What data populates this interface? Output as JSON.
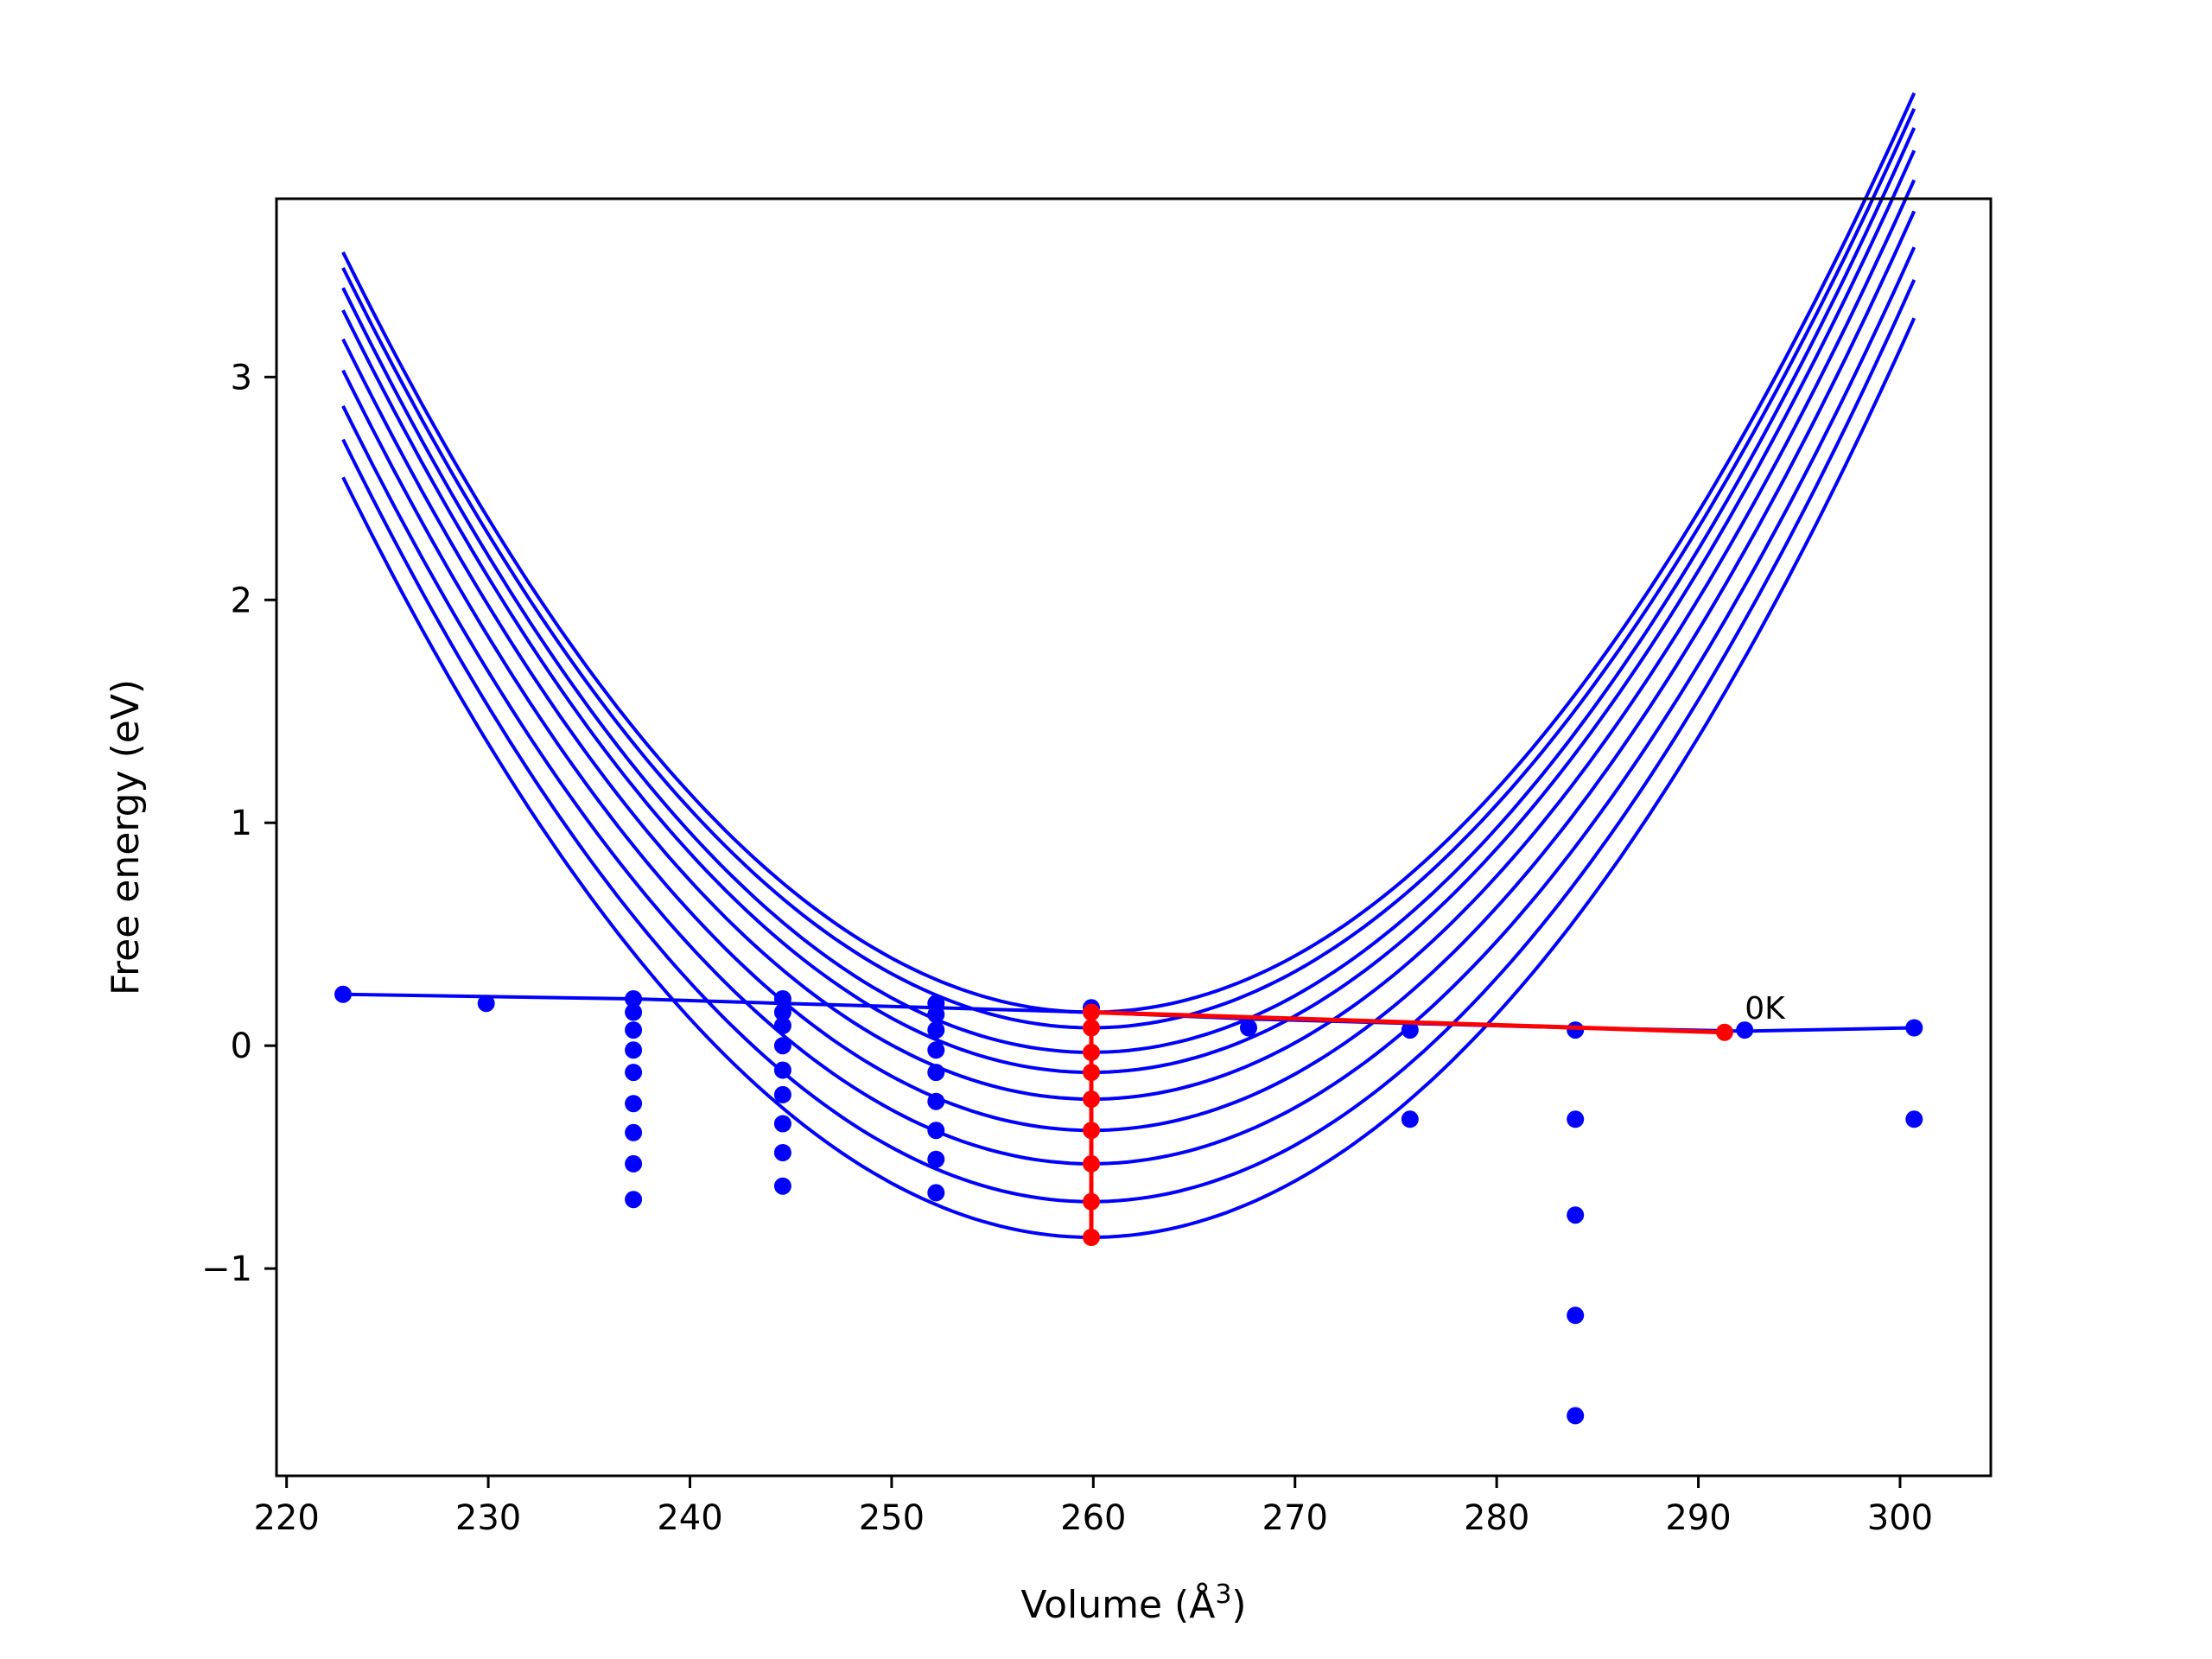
{
  "chart_data": {
    "type": "scatter",
    "xlabel": "Volume (Å",
    "xlabel_sup": "3",
    "xlabel_close": ")",
    "ylabel": "Free energy (eV)",
    "xlim": [
      219.5,
      304.5
    ],
    "ylim": [
      -1.93,
      3.8
    ],
    "xticks": [
      {
        "value": 220,
        "label": "220"
      },
      {
        "value": 230,
        "label": "230"
      },
      {
        "value": 240,
        "label": "240"
      },
      {
        "value": 250,
        "label": "250"
      },
      {
        "value": 260,
        "label": "260"
      },
      {
        "value": 270,
        "label": "270"
      },
      {
        "value": 280,
        "label": "280"
      },
      {
        "value": 290,
        "label": "290"
      },
      {
        "value": 300,
        "label": "300"
      }
    ],
    "yticks": [
      {
        "value": -1,
        "label": "−1"
      },
      {
        "value": 0,
        "label": "0"
      },
      {
        "value": 1,
        "label": "1"
      },
      {
        "value": 2,
        "label": "2"
      },
      {
        "value": 3,
        "label": "3"
      }
    ],
    "grid": false,
    "colors": {
      "curves": "#0000ff",
      "points": "#0000ff",
      "path": "#ff0000",
      "axes": "#000000"
    },
    "parabola_fits": {
      "x_range": [
        222.8,
        300.7
      ],
      "series": [
        {
          "min_x": 259.9,
          "min_y": 0.15,
          "y_at_left": 3.56
        },
        {
          "min_x": 259.9,
          "min_y": 0.08,
          "y_at_left": 3.49
        },
        {
          "min_x": 259.9,
          "min_y": -0.03,
          "y_at_left": 3.4
        },
        {
          "min_x": 259.9,
          "min_y": -0.12,
          "y_at_left": 3.3
        },
        {
          "min_x": 259.9,
          "min_y": -0.24,
          "y_at_left": 3.17
        },
        {
          "min_x": 259.9,
          "min_y": -0.38,
          "y_at_left": 3.03
        },
        {
          "min_x": 259.9,
          "min_y": -0.53,
          "y_at_left": 2.87
        },
        {
          "min_x": 259.9,
          "min_y": -0.7,
          "y_at_left": 2.72
        },
        {
          "min_x": 259.9,
          "min_y": -0.86,
          "y_at_left": 2.55
        }
      ]
    },
    "zero_k_curve": {
      "x": [
        222.8,
        230,
        237.2,
        244.6,
        252.2,
        259.9,
        267.7,
        275.7,
        283.9,
        292.2,
        300.7
      ],
      "y": [
        0.23,
        0.22,
        0.21,
        0.19,
        0.17,
        0.15,
        0.12,
        0.1,
        0.08,
        0.065,
        0.08
      ]
    },
    "points": [
      {
        "x": 222.8,
        "y": 0.23
      },
      {
        "x": 229.9,
        "y": 0.19
      },
      {
        "x": 237.2,
        "y": 0.21
      },
      {
        "x": 237.2,
        "y": 0.15
      },
      {
        "x": 237.2,
        "y": 0.07
      },
      {
        "x": 237.2,
        "y": -0.02
      },
      {
        "x": 237.2,
        "y": -0.12
      },
      {
        "x": 237.2,
        "y": -0.26
      },
      {
        "x": 237.2,
        "y": -0.39
      },
      {
        "x": 237.2,
        "y": -0.53
      },
      {
        "x": 237.2,
        "y": -0.69
      },
      {
        "x": 244.6,
        "y": 0.21
      },
      {
        "x": 244.6,
        "y": 0.15
      },
      {
        "x": 244.6,
        "y": 0.09
      },
      {
        "x": 244.6,
        "y": 0.0
      },
      {
        "x": 244.6,
        "y": -0.11
      },
      {
        "x": 244.6,
        "y": -0.22
      },
      {
        "x": 244.6,
        "y": -0.35
      },
      {
        "x": 244.6,
        "y": -0.48
      },
      {
        "x": 244.6,
        "y": -0.63
      },
      {
        "x": 252.2,
        "y": 0.19
      },
      {
        "x": 252.2,
        "y": 0.14
      },
      {
        "x": 252.2,
        "y": 0.07
      },
      {
        "x": 252.2,
        "y": -0.02
      },
      {
        "x": 252.2,
        "y": -0.12
      },
      {
        "x": 252.2,
        "y": -0.25
      },
      {
        "x": 252.2,
        "y": -0.38
      },
      {
        "x": 252.2,
        "y": -0.51
      },
      {
        "x": 252.2,
        "y": -0.66
      },
      {
        "x": 259.9,
        "y": 0.17
      },
      {
        "x": 267.7,
        "y": 0.08
      },
      {
        "x": 275.7,
        "y": 0.07
      },
      {
        "x": 275.7,
        "y": -0.33
      },
      {
        "x": 283.9,
        "y": 0.07
      },
      {
        "x": 283.9,
        "y": -0.33
      },
      {
        "x": 283.9,
        "y": -0.76
      },
      {
        "x": 283.9,
        "y": -1.21
      },
      {
        "x": 283.9,
        "y": -1.66
      },
      {
        "x": 292.3,
        "y": 0.07
      },
      {
        "x": 300.7,
        "y": 0.08
      },
      {
        "x": 300.7,
        "y": -0.33
      }
    ],
    "minima_path": {
      "x": [
        291.3,
        259.9,
        259.9,
        259.9,
        259.9,
        259.9,
        259.9,
        259.9,
        259.9,
        259.9
      ],
      "y": [
        0.06,
        0.15,
        0.08,
        -0.03,
        -0.12,
        -0.24,
        -0.38,
        -0.53,
        -0.7,
        -0.86
      ]
    },
    "annotations": [
      {
        "text": "0K",
        "x": 292.3,
        "y": 0.12
      }
    ]
  }
}
